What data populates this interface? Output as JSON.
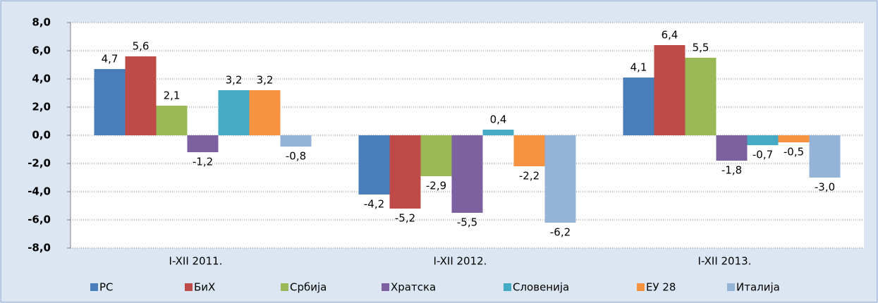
{
  "chart_data": {
    "type": "bar",
    "categories": [
      "I-XII 2011.",
      "I-XII 2012.",
      "I-XII 2013."
    ],
    "series": [
      {
        "name": "РС",
        "color": "#4a7ebb",
        "values": [
          4.7,
          -4.2,
          4.1
        ],
        "value_labels": [
          "4,7",
          "-4,2",
          "4,1"
        ]
      },
      {
        "name": "БиХ",
        "color": "#be4b48",
        "values": [
          5.6,
          -5.2,
          6.4
        ],
        "value_labels": [
          "5,6",
          "-5,2",
          "6,4"
        ]
      },
      {
        "name": "Србија",
        "color": "#98b954",
        "values": [
          2.1,
          -2.9,
          5.5
        ],
        "value_labels": [
          "2,1",
          "-2,9",
          "5,5"
        ]
      },
      {
        "name": "Хратска",
        "color": "#7d60a0",
        "values": [
          -1.2,
          -5.5,
          -1.8
        ],
        "value_labels": [
          "-1,2",
          "-5,5",
          "-1,8"
        ]
      },
      {
        "name": "Словенија",
        "color": "#46aac5",
        "values": [
          3.2,
          0.4,
          -0.7
        ],
        "value_labels": [
          "3,2",
          "0,4",
          "-0,7"
        ]
      },
      {
        "name": "ЕУ 28",
        "color": "#f69240",
        "values": [
          3.2,
          -2.2,
          -0.5
        ],
        "value_labels": [
          "3,2",
          "-2,2",
          "-0,5"
        ]
      },
      {
        "name": "Италија",
        "color": "#95b3d7",
        "values": [
          -0.8,
          -6.2,
          -3.0
        ],
        "value_labels": [
          "-0,8",
          "-6,2",
          "-3,0"
        ]
      }
    ],
    "ylim": [
      -8,
      8
    ],
    "yticks": [
      {
        "value": -8,
        "label": "-8,0"
      },
      {
        "value": -6,
        "label": "-6,0"
      },
      {
        "value": -4,
        "label": "-4,0"
      },
      {
        "value": -2,
        "label": "-2,0"
      },
      {
        "value": 0,
        "label": "0,0"
      },
      {
        "value": 2,
        "label": "2,0"
      },
      {
        "value": 4,
        "label": "4,0"
      },
      {
        "value": 6,
        "label": "6,0"
      },
      {
        "value": 8,
        "label": "8,0"
      }
    ],
    "grid": true,
    "legend": "bottom"
  }
}
